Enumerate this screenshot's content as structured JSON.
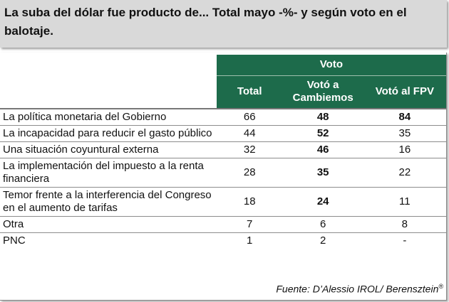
{
  "title": "La suba del dólar fue producto de... Total mayo -%- y según voto en el balotaje.",
  "chart_data": {
    "type": "table",
    "group_header": "Voto",
    "columns": [
      "Total",
      "Votó a Cambiemos",
      "Votó al FPV"
    ],
    "rows": [
      {
        "label": "La política monetaria del Gobierno",
        "values": [
          "66",
          "48",
          "84"
        ]
      },
      {
        "label": "La incapacidad para reducir el gasto público",
        "values": [
          "44",
          "52",
          "35"
        ]
      },
      {
        "label": "Una situación coyuntural externa",
        "values": [
          "32",
          "46",
          "16"
        ]
      },
      {
        "label": "La implementación del impuesto a la renta financiera",
        "values": [
          "28",
          "35",
          "22"
        ]
      },
      {
        "label": "Temor frente a la interferencia del Congreso en el aumento de tarifas",
        "values": [
          "18",
          "24",
          "11"
        ]
      },
      {
        "label": "Otra",
        "values": [
          "7",
          "6",
          "8"
        ]
      },
      {
        "label": "PNC",
        "values": [
          "1",
          "2",
          "-"
        ]
      }
    ]
  },
  "source": "Fuente: D’Alessio IROL/ Berensztein",
  "source_mark": "®",
  "colors": {
    "header": "#1d6b4b",
    "title_bg": "#d9d9d9"
  }
}
